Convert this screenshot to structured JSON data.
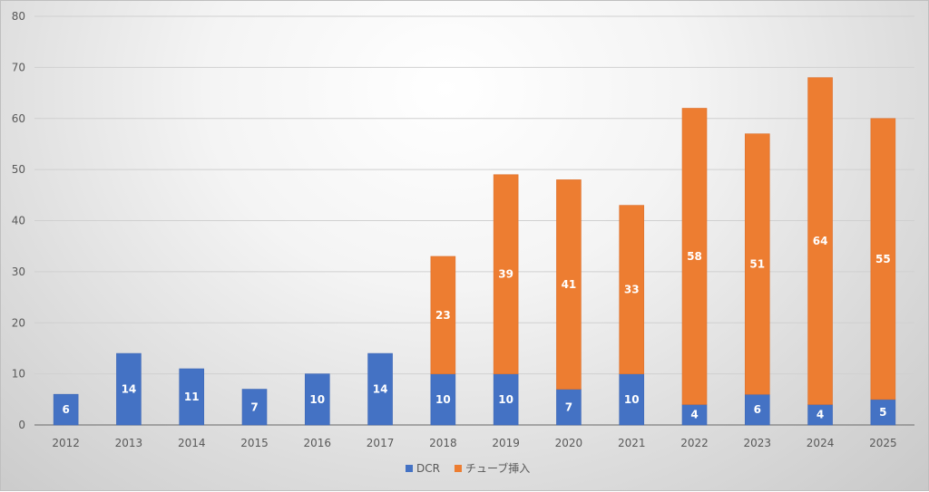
{
  "chart_data": {
    "type": "bar",
    "stacked": true,
    "title": "",
    "xlabel": "",
    "ylabel": "",
    "categories": [
      "2012",
      "2013",
      "2014",
      "2015",
      "2016",
      "2017",
      "2018",
      "2019",
      "2020",
      "2021",
      "2022",
      "2023",
      "2024",
      "2025"
    ],
    "series": [
      {
        "name": "DCR",
        "color": "#4472c4",
        "values": [
          6,
          14,
          11,
          7,
          10,
          14,
          10,
          10,
          7,
          10,
          4,
          6,
          4,
          5
        ]
      },
      {
        "name": "チューブ挿入",
        "color": "#ed7d31",
        "values": [
          0,
          0,
          0,
          0,
          0,
          0,
          23,
          39,
          41,
          33,
          58,
          51,
          64,
          55
        ]
      }
    ],
    "ylim": [
      0,
      80
    ],
    "yticks": [
      0,
      10,
      20,
      30,
      40,
      50,
      60,
      70,
      80
    ],
    "grid": true,
    "legend_position": "bottom"
  }
}
